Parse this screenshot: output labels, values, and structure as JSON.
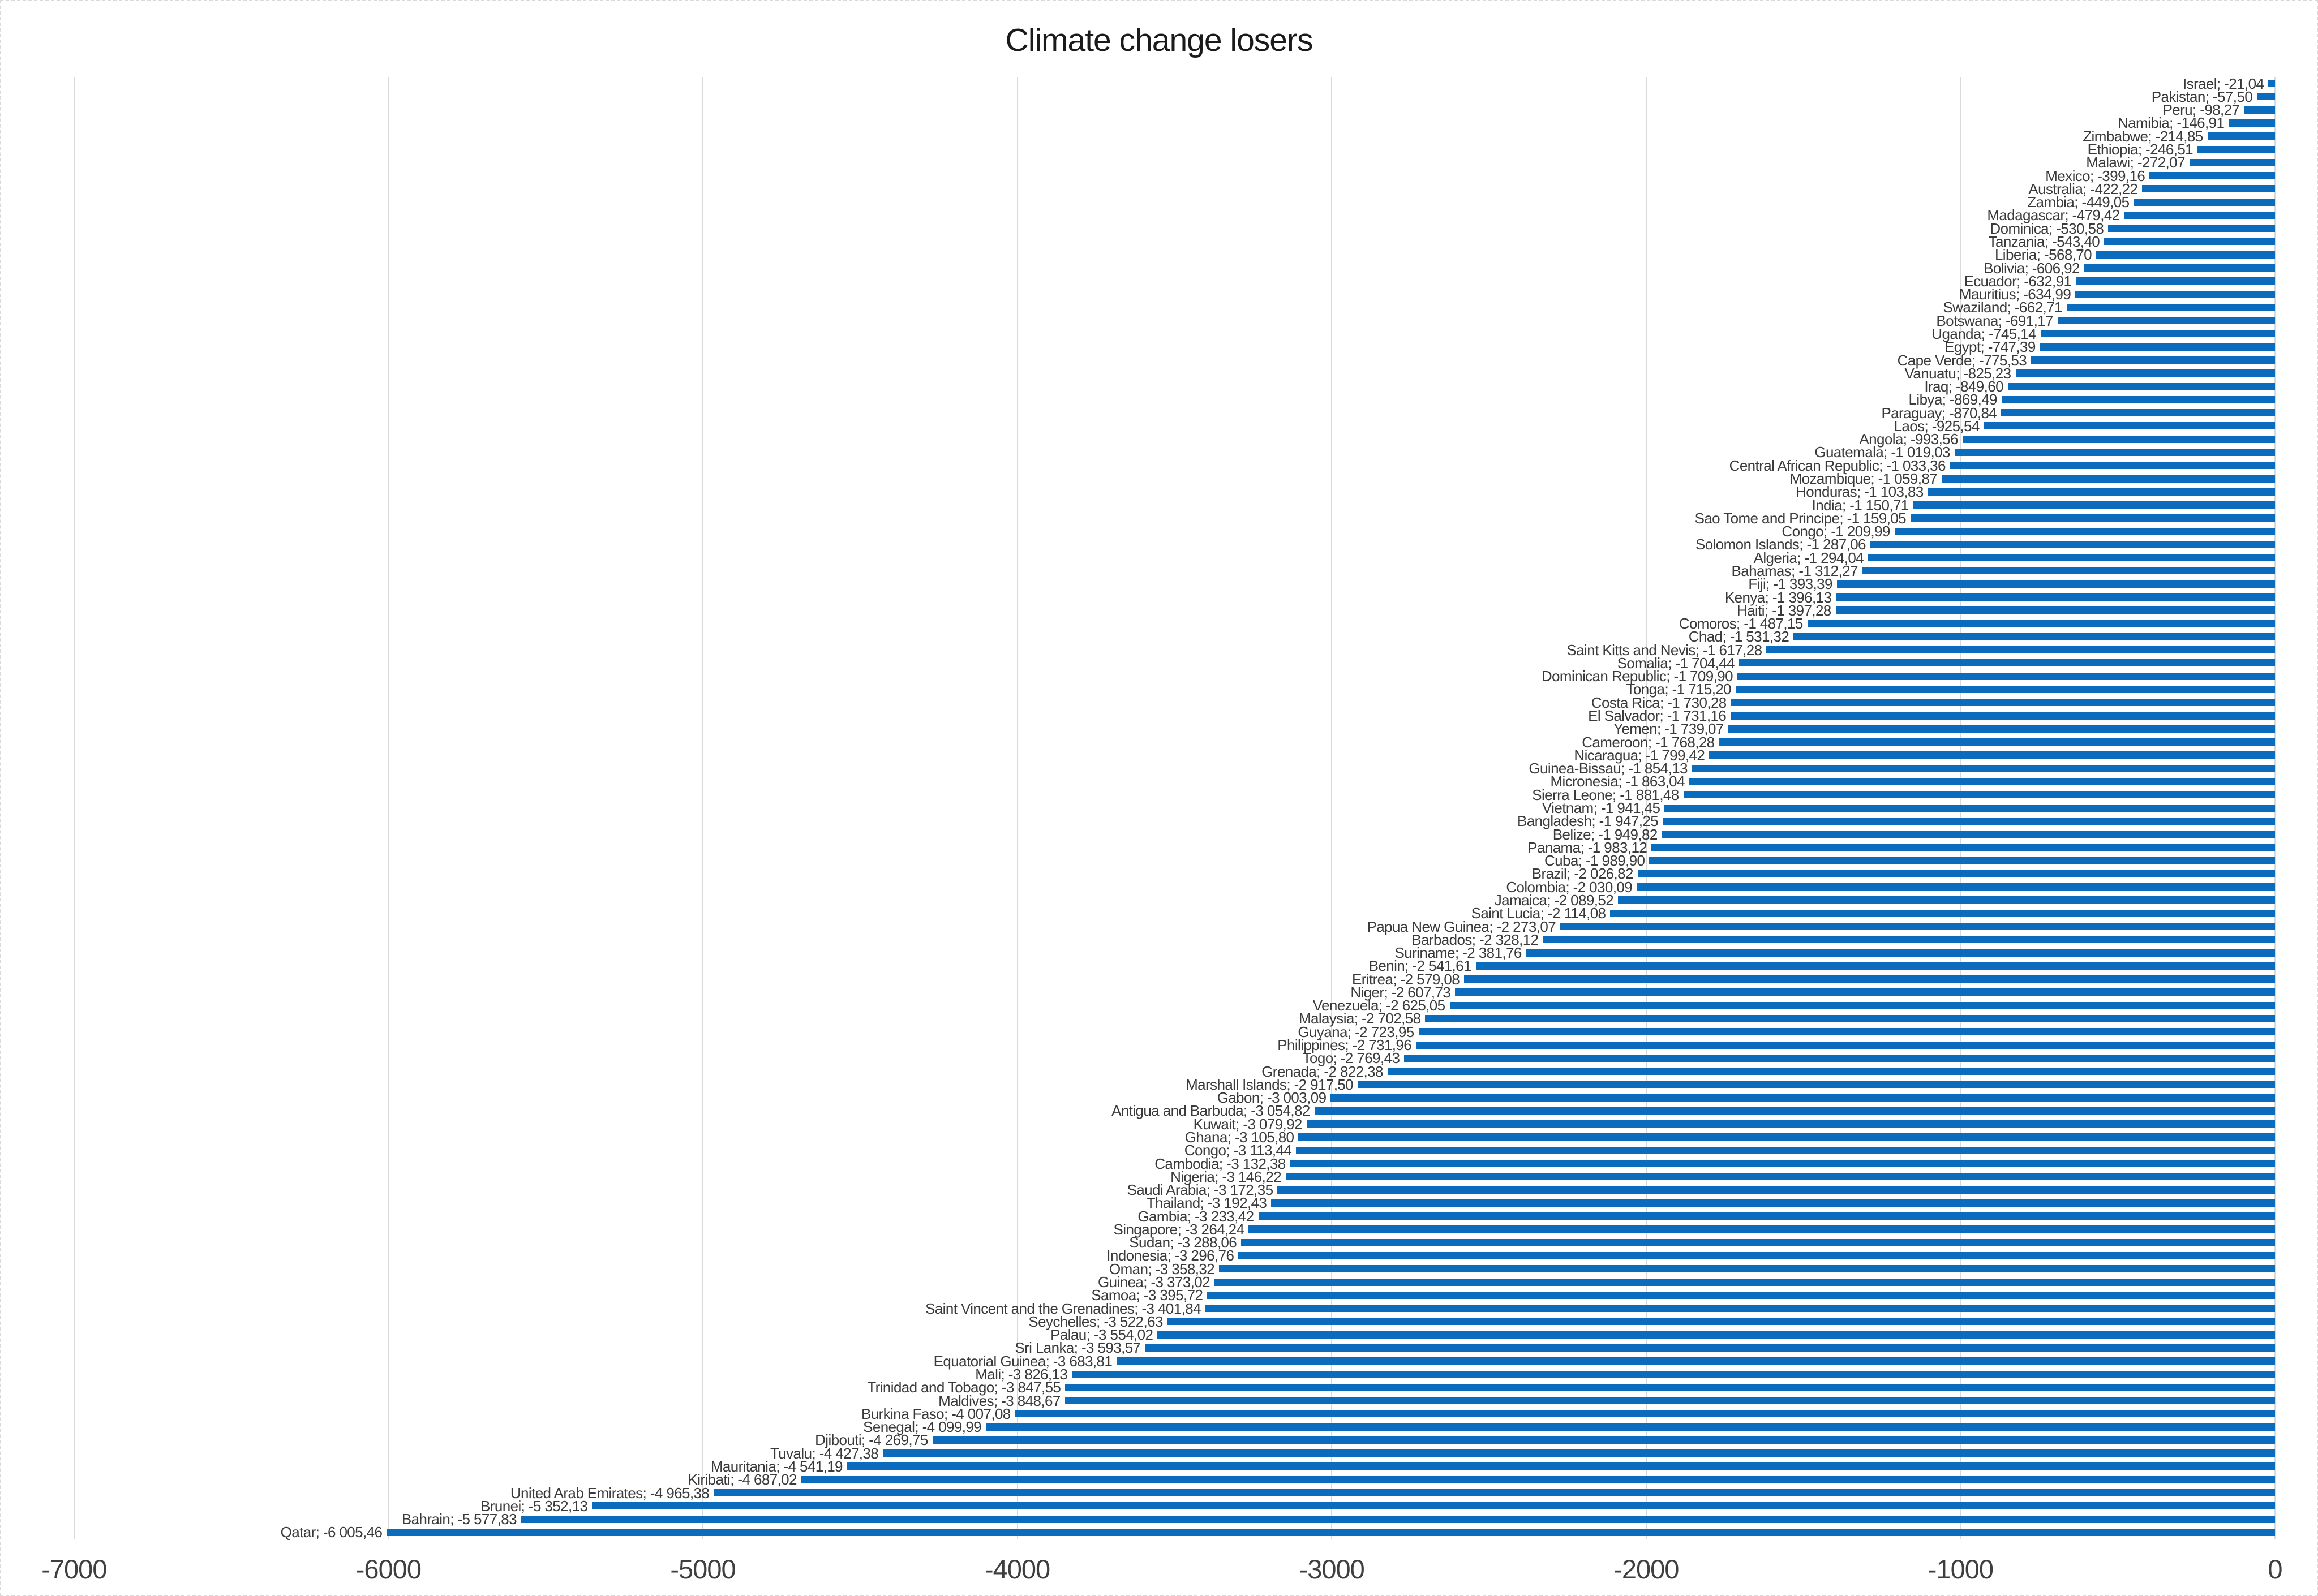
{
  "chart_data": {
    "type": "bar",
    "orientation": "horizontal",
    "title": "Climate change losers",
    "categories": [
      "Israel",
      "Pakistan",
      "Peru",
      "Namibia",
      "Zimbabwe",
      "Ethiopia",
      "Malawi",
      "Mexico",
      "Australia",
      "Zambia",
      "Madagascar",
      "Dominica",
      "Tanzania",
      "Liberia",
      "Bolivia",
      "Ecuador",
      "Mauritius",
      "Swaziland",
      "Botswana",
      "Uganda",
      "Egypt",
      "Cape Verde",
      "Vanuatu",
      "Iraq",
      "Libya",
      "Paraguay",
      "Laos",
      "Angola",
      "Guatemala",
      "Central African Republic",
      "Mozambique",
      "Honduras",
      "India",
      "Sao Tome and Principe",
      "Congo",
      "Solomon Islands",
      "Algeria",
      "Bahamas",
      "Fiji",
      "Kenya",
      "Haiti",
      "Comoros",
      "Chad",
      "Saint Kitts and Nevis",
      "Somalia",
      "Dominican Republic",
      "Tonga",
      "Costa Rica",
      "El Salvador",
      "Yemen",
      "Cameroon",
      "Nicaragua",
      "Guinea-Bissau",
      "Micronesia",
      "Sierra Leone",
      "Vietnam",
      "Bangladesh",
      "Belize",
      "Panama",
      "Cuba",
      "Brazil",
      "Colombia",
      "Jamaica",
      "Saint Lucia",
      "Papua New Guinea",
      "Barbados",
      "Suriname",
      "Benin",
      "Eritrea",
      "Niger",
      "Venezuela",
      "Malaysia",
      "Guyana",
      "Philippines",
      "Togo",
      "Grenada",
      "Marshall Islands",
      "Gabon",
      "Antigua and Barbuda",
      "Kuwait",
      "Ghana",
      "Congo",
      "Cambodia",
      "Nigeria",
      "Saudi Arabia",
      "Thailand",
      "Gambia",
      "Singapore",
      "Sudan",
      "Indonesia",
      "Oman",
      "Guinea",
      "Samoa",
      "Saint Vincent and the Grenadines",
      "Seychelles",
      "Palau",
      "Sri Lanka",
      "Equatorial Guinea",
      "Mali",
      "Trinidad and Tobago",
      "Maldives",
      "Burkina Faso",
      "Senegal",
      "Djibouti",
      "Tuvalu",
      "Mauritania",
      "Kiribati",
      "United Arab Emirates",
      "Brunei",
      "Bahrain",
      "Qatar"
    ],
    "values": [
      -21.04,
      -57.5,
      -98.27,
      -146.91,
      -214.85,
      -246.51,
      -272.07,
      -399.16,
      -422.22,
      -449.05,
      -479.42,
      -530.58,
      -543.4,
      -568.7,
      -606.92,
      -632.91,
      -634.99,
      -662.71,
      -691.17,
      -745.14,
      -747.39,
      -775.53,
      -825.23,
      -849.6,
      -869.49,
      -870.84,
      -925.54,
      -993.56,
      -1019.03,
      -1033.36,
      -1059.87,
      -1103.83,
      -1150.71,
      -1159.05,
      -1209.99,
      -1287.06,
      -1294.04,
      -1312.27,
      -1393.39,
      -1396.13,
      -1397.28,
      -1487.15,
      -1531.32,
      -1617.28,
      -1704.44,
      -1709.9,
      -1715.2,
      -1730.28,
      -1731.16,
      -1739.07,
      -1768.28,
      -1799.42,
      -1854.13,
      -1863.04,
      -1881.48,
      -1941.45,
      -1947.25,
      -1949.82,
      -1983.12,
      -1989.9,
      -2026.82,
      -2030.09,
      -2089.52,
      -2114.08,
      -2273.07,
      -2328.12,
      -2381.76,
      -2541.61,
      -2579.08,
      -2607.73,
      -2625.05,
      -2702.58,
      -2723.95,
      -2731.96,
      -2769.43,
      -2822.38,
      -2917.5,
      -3003.09,
      -3054.82,
      -3079.92,
      -3105.8,
      -3113.44,
      -3132.38,
      -3146.22,
      -3172.35,
      -3192.43,
      -3233.42,
      -3264.24,
      -3288.06,
      -3296.76,
      -3358.32,
      -3373.02,
      -3395.72,
      -3401.84,
      -3522.63,
      -3554.02,
      -3593.57,
      -3683.81,
      -3826.13,
      -3847.55,
      -3848.67,
      -4007.08,
      -4099.99,
      -4269.75,
      -4427.38,
      -4541.19,
      -4687.02,
      -4965.38,
      -5352.13,
      -5577.83,
      -6005.46
    ],
    "xlim": [
      -7000,
      0
    ],
    "x_ticks": [
      -7000,
      -6000,
      -5000,
      -4000,
      -3000,
      -2000,
      -1000,
      0
    ],
    "x_tick_labels": [
      "-7000",
      "-6000",
      "-5000",
      "-4000",
      "-3000",
      "-2000",
      "-1000",
      "0"
    ],
    "grid": true,
    "legend": false,
    "label_separator": "; ",
    "decimal_separator": ",",
    "thousands_separator": " ",
    "colors": {
      "bar": "#0B6CBE",
      "grid": "#d9d9d9",
      "data_label": "#3a3a3a",
      "tick_label": "#3f3f3f",
      "title": "#1a1a1a",
      "background": "#ffffff"
    }
  }
}
